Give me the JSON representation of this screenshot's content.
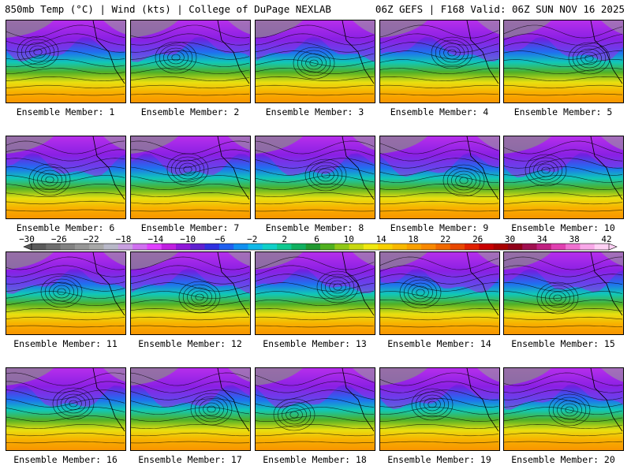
{
  "header": {
    "left": "850mb Temp (°C) | Wind (kts) | College of DuPage NEXLAB",
    "right": "06Z GEFS | F168 Valid: 06Z SUN NOV 16 2025"
  },
  "member_label_prefix": "Ensemble Member:",
  "members": [
    {
      "number": "1"
    },
    {
      "number": "2"
    },
    {
      "number": "3"
    },
    {
      "number": "4"
    },
    {
      "number": "5"
    },
    {
      "number": "6"
    },
    {
      "number": "7"
    },
    {
      "number": "8"
    },
    {
      "number": "9"
    },
    {
      "number": "10"
    },
    {
      "number": "11"
    },
    {
      "number": "12"
    },
    {
      "number": "13"
    },
    {
      "number": "14"
    },
    {
      "number": "15"
    },
    {
      "number": "16"
    },
    {
      "number": "17"
    },
    {
      "number": "18"
    },
    {
      "number": "19"
    },
    {
      "number": "20"
    }
  ],
  "colorbar": {
    "ticks": [
      "−30",
      "−26",
      "−22",
      "−18",
      "−14",
      "−10",
      "−6",
      "−2",
      "2",
      "6",
      "10",
      "14",
      "18",
      "22",
      "26",
      "30",
      "34",
      "38",
      "42"
    ],
    "colors": [
      "#5a5a5a",
      "#6e6e6e",
      "#828282",
      "#969696",
      "#a8a8a8",
      "#b8b8c8",
      "#c8a0e0",
      "#d070f0",
      "#e040ff",
      "#c020e0",
      "#9018d8",
      "#6020d0",
      "#3030e0",
      "#2060f0",
      "#1090f0",
      "#10b8e8",
      "#10d0c8",
      "#10c890",
      "#10b060",
      "#209830",
      "#50b020",
      "#90c818",
      "#c8d810",
      "#f0e810",
      "#f8d000",
      "#f8b800",
      "#f8a000",
      "#f88800",
      "#f06800",
      "#e84800",
      "#e02000",
      "#c80000",
      "#a80000",
      "#900018",
      "#a01050",
      "#c02080",
      "#e040b0",
      "#f070d0",
      "#f8a8e8",
      "#ffd0f4"
    ]
  }
}
